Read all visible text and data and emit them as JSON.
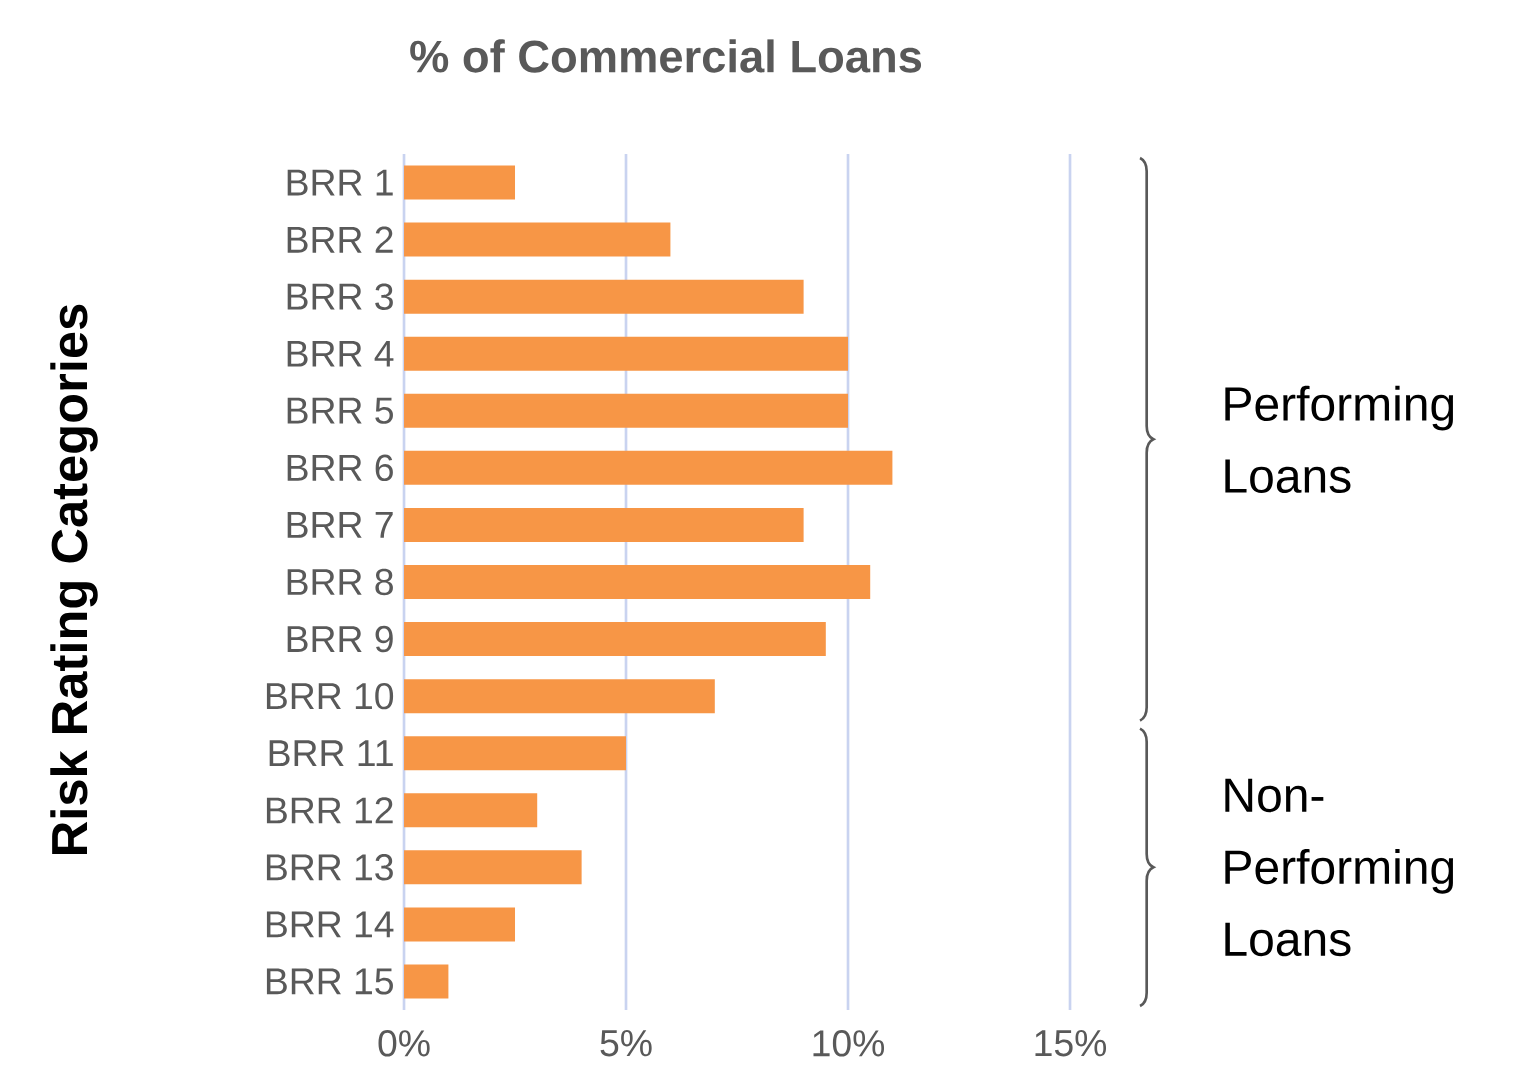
{
  "chart_data": {
    "type": "bar",
    "orientation": "horizontal",
    "title": "% of Commercial Loans",
    "ylabel": "Risk Rating Categories",
    "categories": [
      "BRR 1",
      "BRR 2",
      "BRR 3",
      "BRR 4",
      "BRR 5",
      "BRR 6",
      "BRR 7",
      "BRR 8",
      "BRR 9",
      "BRR 10",
      "BRR 11",
      "BRR 12",
      "BRR 13",
      "BRR 14",
      "BRR 15"
    ],
    "values": [
      2.5,
      6,
      9,
      10,
      10,
      11,
      9,
      10.5,
      9.5,
      7,
      5,
      3,
      4,
      2.5,
      1
    ],
    "color": "#f79646",
    "xlim": [
      0,
      15
    ],
    "xticks": [
      {
        "value": 0,
        "label": "0%"
      },
      {
        "value": 5,
        "label": "5%"
      },
      {
        "value": 10,
        "label": "10%"
      },
      {
        "value": 15,
        "label": "15%"
      }
    ],
    "grid": "x",
    "annotations": [
      "Performing Loans",
      "Non-Performing Loans"
    ]
  }
}
